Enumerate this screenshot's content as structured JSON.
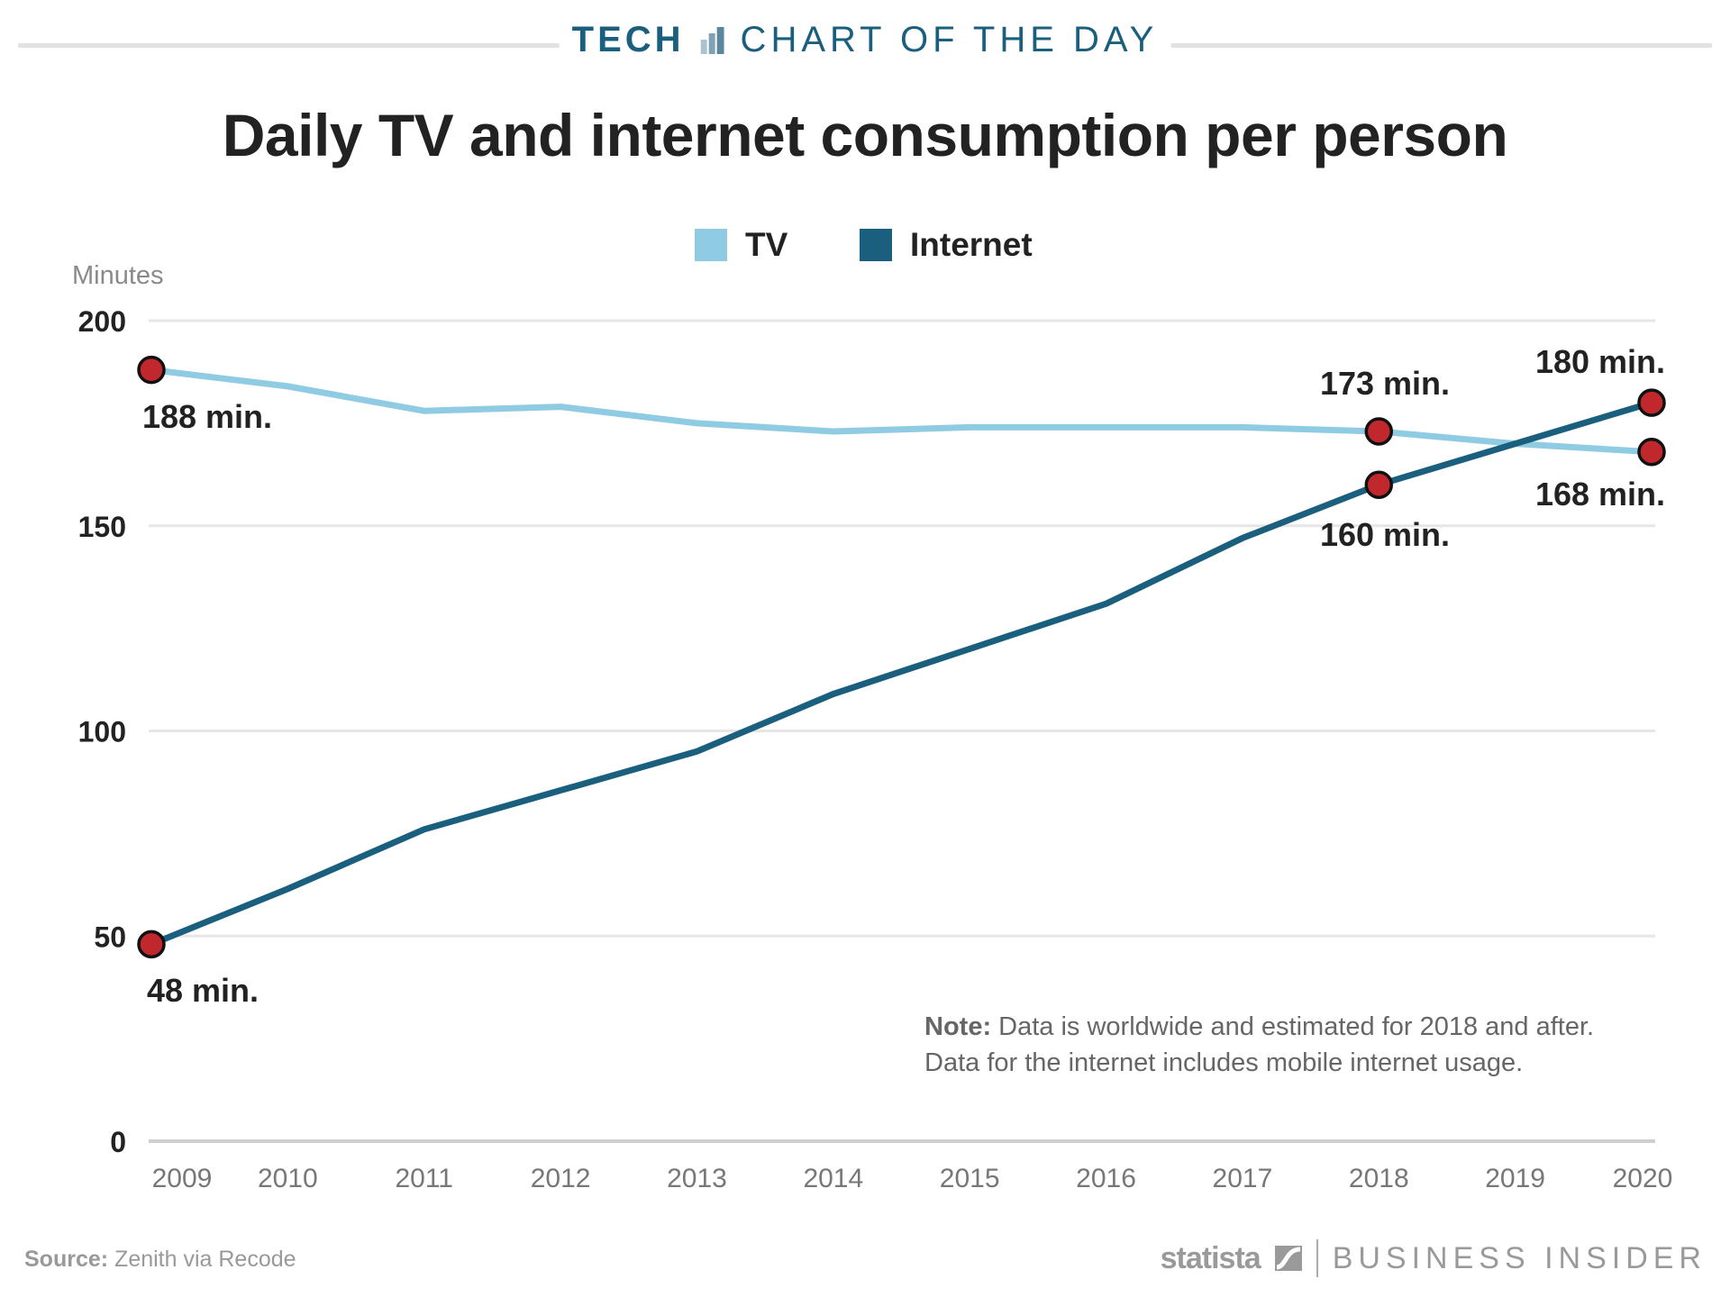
{
  "header": {
    "section": "TECH",
    "series": "CHART OF THE DAY"
  },
  "chart_data": {
    "type": "line",
    "title": "Daily TV and internet consumption per person",
    "ylabel": "Minutes",
    "xlabel": "",
    "ylim": [
      0,
      200
    ],
    "yticks": [
      "0",
      "50",
      "100",
      "150",
      "200"
    ],
    "x": [
      "2009",
      "2010",
      "2011",
      "2012",
      "2013",
      "2014",
      "2015",
      "2016",
      "2017",
      "2018",
      "2019",
      "2020"
    ],
    "grid": true,
    "legend_placement": "top-center",
    "series": [
      {
        "name": "TV",
        "color": "#8fcbe3",
        "values": [
          188,
          184,
          178,
          179,
          175,
          173,
          174,
          174,
          174,
          173,
          170,
          168
        ]
      },
      {
        "name": "Internet",
        "color": "#1b5f7e",
        "values": [
          48,
          61.5,
          76,
          85.5,
          95,
          109,
          120,
          131,
          147,
          160,
          170,
          180
        ]
      }
    ],
    "annotations": [
      {
        "series": "TV",
        "x": "2009",
        "label": "188 min."
      },
      {
        "series": "Internet",
        "x": "2009",
        "label": "48 min."
      },
      {
        "series": "TV",
        "x": "2018",
        "label": "173 min."
      },
      {
        "series": "Internet",
        "x": "2018",
        "label": "160 min."
      },
      {
        "series": "Internet",
        "x": "2020",
        "label": "180 min."
      },
      {
        "series": "TV",
        "x": "2020",
        "label": "168 min."
      }
    ],
    "marker_color": "#c0282d",
    "note_bold": "Note:",
    "note_lines": [
      "Data is worldwide and estimated for 2018 and after.",
      "Data for the internet includes mobile internet usage."
    ]
  },
  "footer": {
    "source_label": "Source:",
    "source": "Zenith via Recode",
    "logo1": "statista",
    "logo2": "BUSINESS INSIDER"
  }
}
